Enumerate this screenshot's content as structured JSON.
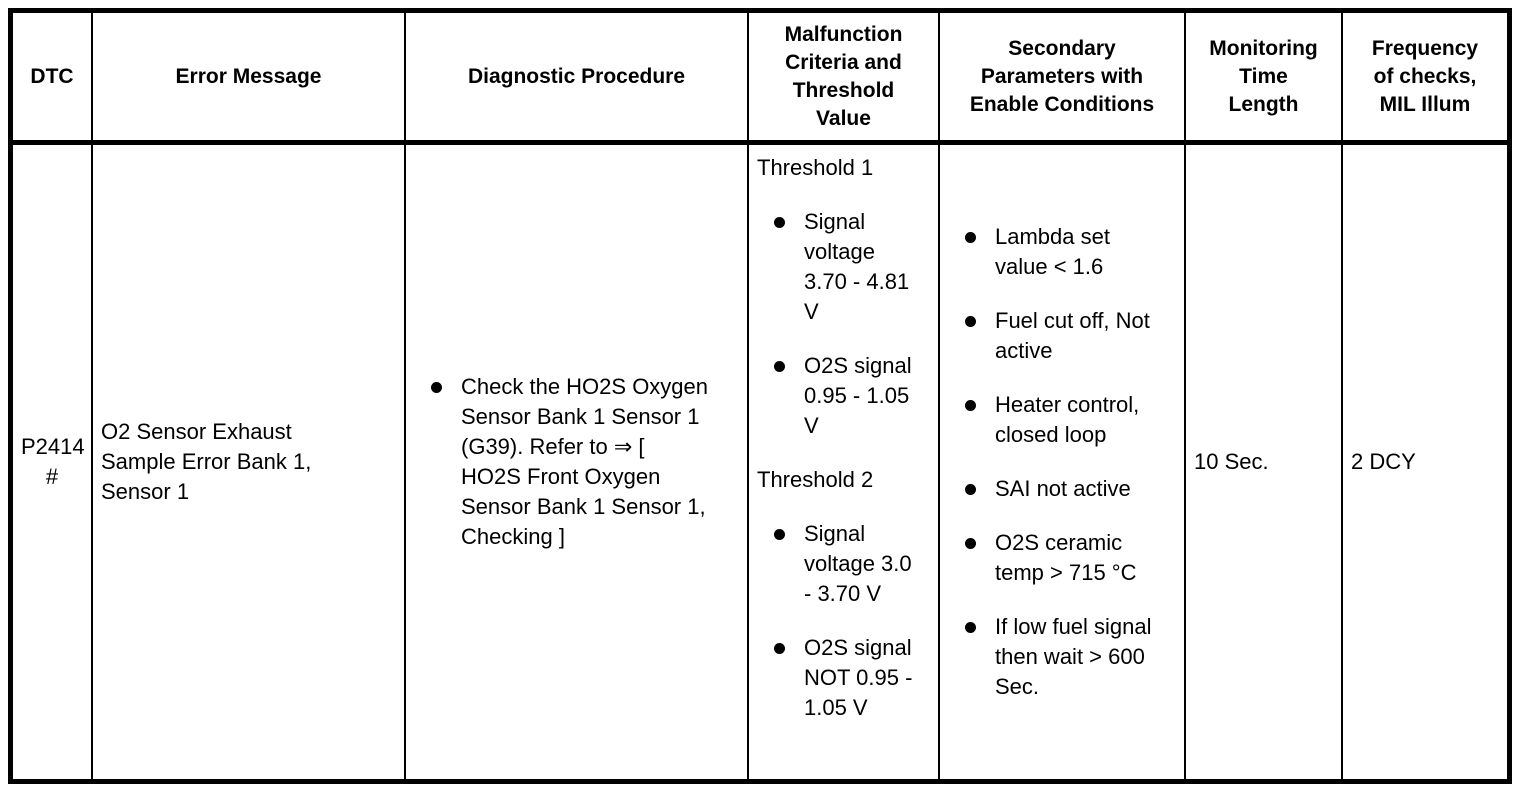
{
  "table": {
    "columns": [
      {
        "label": "DTC"
      },
      {
        "label": "Error Message"
      },
      {
        "label": "Diagnostic Procedure"
      },
      {
        "label": "Malfunction\nCriteria and\nThreshold\nValue"
      },
      {
        "label": "Secondary\nParameters with\nEnable Conditions"
      },
      {
        "label": "Monitoring\nTime\nLength"
      },
      {
        "label": "Frequency\nof checks,\nMIL Illum"
      }
    ],
    "row": {
      "dtc_code": "P2414",
      "dtc_flag": "#",
      "error_message": "O2 Sensor Exhaust\nSample Error Bank 1,\nSensor 1",
      "diagnostic_procedure": [
        "Check the HO2S Oxygen\nSensor Bank 1 Sensor 1\n(G39). Refer to ⇒ [\nHO2S Front Oxygen\nSensor Bank 1 Sensor 1,\nChecking ]"
      ],
      "malfunction_criteria": {
        "sections": [
          {
            "title": "Threshold 1",
            "items": [
              "Signal\nvoltage\n3.70 - 4.81\nV",
              "O2S signal\n0.95 - 1.05\nV"
            ]
          },
          {
            "title": "Threshold 2",
            "items": [
              "Signal\nvoltage 3.0\n- 3.70 V",
              "O2S signal\nNOT 0.95 -\n1.05 V"
            ]
          }
        ]
      },
      "secondary_parameters": [
        "Lambda set\nvalue < 1.6",
        "Fuel cut off, Not\nactive",
        "Heater control,\nclosed loop",
        "SAI not active",
        "O2S ceramic\ntemp > 715 °C",
        "If low fuel signal\nthen wait > 600\nSec."
      ],
      "monitoring_time": "10 Sec.",
      "frequency": "2 DCY"
    },
    "icons": {
      "bullet-icon": "●",
      "arrow-right-icon": "⇒"
    },
    "colors": {
      "border": "#000000",
      "background": "#ffffff",
      "text": "#000000"
    }
  }
}
